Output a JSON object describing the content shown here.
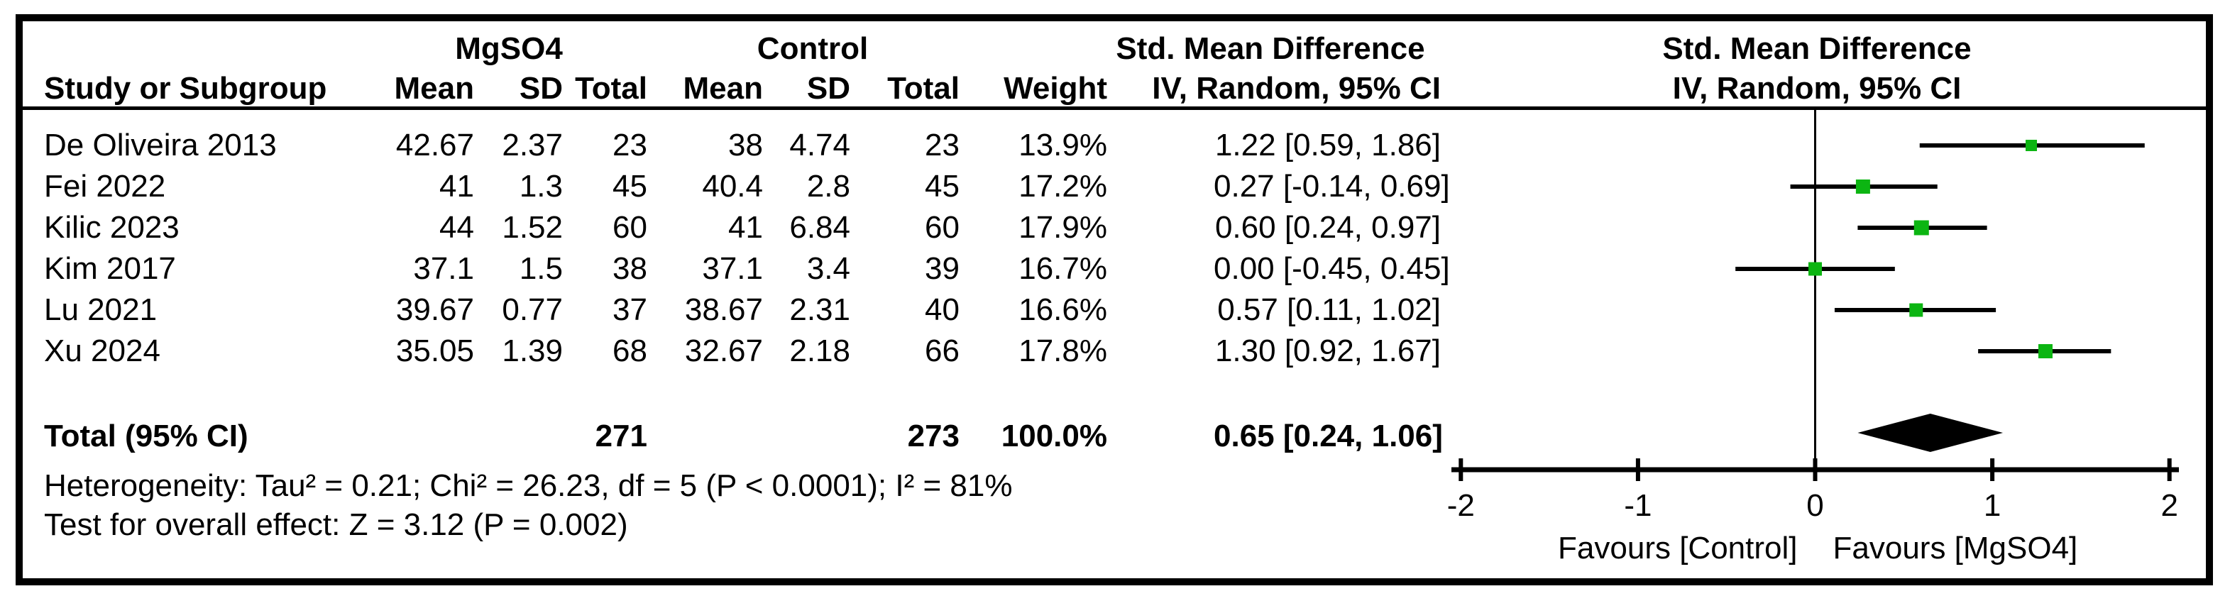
{
  "table": {
    "group_headers": {
      "treatment": "MgSO4",
      "control": "Control",
      "smd_text_col": "Std. Mean Difference",
      "smd_plot_col": "Std. Mean Difference"
    },
    "column_headers": {
      "study": "Study or Subgroup",
      "mean_t": "Mean",
      "sd_t": "SD",
      "total_t": "Total",
      "mean_c": "Mean",
      "sd_c": "SD",
      "total_c": "Total",
      "weight": "Weight",
      "ci_text": "IV, Random, 95% CI",
      "ci_plot": "IV, Random, 95% CI"
    },
    "rows": [
      {
        "study": "De Oliveira 2013",
        "mean_t": "42.67",
        "sd_t": "2.37",
        "total_t": "23",
        "mean_c": "38",
        "sd_c": "4.74",
        "total_c": "23",
        "weight": "13.9%",
        "ci": "1.22 [0.59, 1.86]"
      },
      {
        "study": "Fei 2022",
        "mean_t": "41",
        "sd_t": "1.3",
        "total_t": "45",
        "mean_c": "40.4",
        "sd_c": "2.8",
        "total_c": "45",
        "weight": "17.2%",
        "ci": "0.27 [-0.14, 0.69]"
      },
      {
        "study": "Kilic 2023",
        "mean_t": "44",
        "sd_t": "1.52",
        "total_t": "60",
        "mean_c": "41",
        "sd_c": "6.84",
        "total_c": "60",
        "weight": "17.9%",
        "ci": "0.60 [0.24, 0.97]"
      },
      {
        "study": "Kim 2017",
        "mean_t": "37.1",
        "sd_t": "1.5",
        "total_t": "38",
        "mean_c": "37.1",
        "sd_c": "3.4",
        "total_c": "39",
        "weight": "16.7%",
        "ci": "0.00 [-0.45, 0.45]"
      },
      {
        "study": "Lu 2021",
        "mean_t": "39.67",
        "sd_t": "0.77",
        "total_t": "37",
        "mean_c": "38.67",
        "sd_c": "2.31",
        "total_c": "40",
        "weight": "16.6%",
        "ci": "0.57 [0.11, 1.02]"
      },
      {
        "study": "Xu 2024",
        "mean_t": "35.05",
        "sd_t": "1.39",
        "total_t": "68",
        "mean_c": "32.67",
        "sd_c": "2.18",
        "total_c": "66",
        "weight": "17.8%",
        "ci": "1.30 [0.92, 1.67]"
      }
    ],
    "total_row": {
      "label": "Total (95% CI)",
      "total_t": "271",
      "total_c": "273",
      "weight": "100.0%",
      "ci": "0.65 [0.24, 1.06]"
    },
    "footnotes": {
      "heterogeneity": "Heterogeneity: Tau² = 0.21; Chi² = 26.23, df = 5 (P < 0.0001); I² = 81%",
      "overall_effect": "Test for overall effect: Z = 3.12 (P = 0.002)"
    }
  },
  "chart_data": {
    "type": "scatter",
    "subtype": "forest-plot",
    "title": "Std. Mean Difference",
    "effect_model": "IV, Random, 95% CI",
    "axis": {
      "min": -2,
      "max": 2,
      "ticks": [
        -2,
        -1,
        0,
        1,
        2
      ],
      "labels": [
        "-2",
        "-1",
        "0",
        "1",
        "2"
      ]
    },
    "studies": [
      {
        "name": "De Oliveira 2013",
        "smd": 1.22,
        "ci_low": 0.59,
        "ci_high": 1.86,
        "weight_pct": 13.9
      },
      {
        "name": "Fei 2022",
        "smd": 0.27,
        "ci_low": -0.14,
        "ci_high": 0.69,
        "weight_pct": 17.2
      },
      {
        "name": "Kilic 2023",
        "smd": 0.6,
        "ci_low": 0.24,
        "ci_high": 0.97,
        "weight_pct": 17.9
      },
      {
        "name": "Kim 2017",
        "smd": 0.0,
        "ci_low": -0.45,
        "ci_high": 0.45,
        "weight_pct": 16.7
      },
      {
        "name": "Lu 2021",
        "smd": 0.57,
        "ci_low": 0.11,
        "ci_high": 1.02,
        "weight_pct": 16.6
      },
      {
        "name": "Xu 2024",
        "smd": 1.3,
        "ci_low": 0.92,
        "ci_high": 1.67,
        "weight_pct": 17.8
      }
    ],
    "overall": {
      "smd": 0.65,
      "ci_low": 0.24,
      "ci_high": 1.06,
      "weight_pct": 100.0
    },
    "favours_left": "Favours [Control]",
    "favours_right": "Favours [MgSO4]",
    "marker_color": "#0CB512",
    "line_color": "#000000"
  }
}
